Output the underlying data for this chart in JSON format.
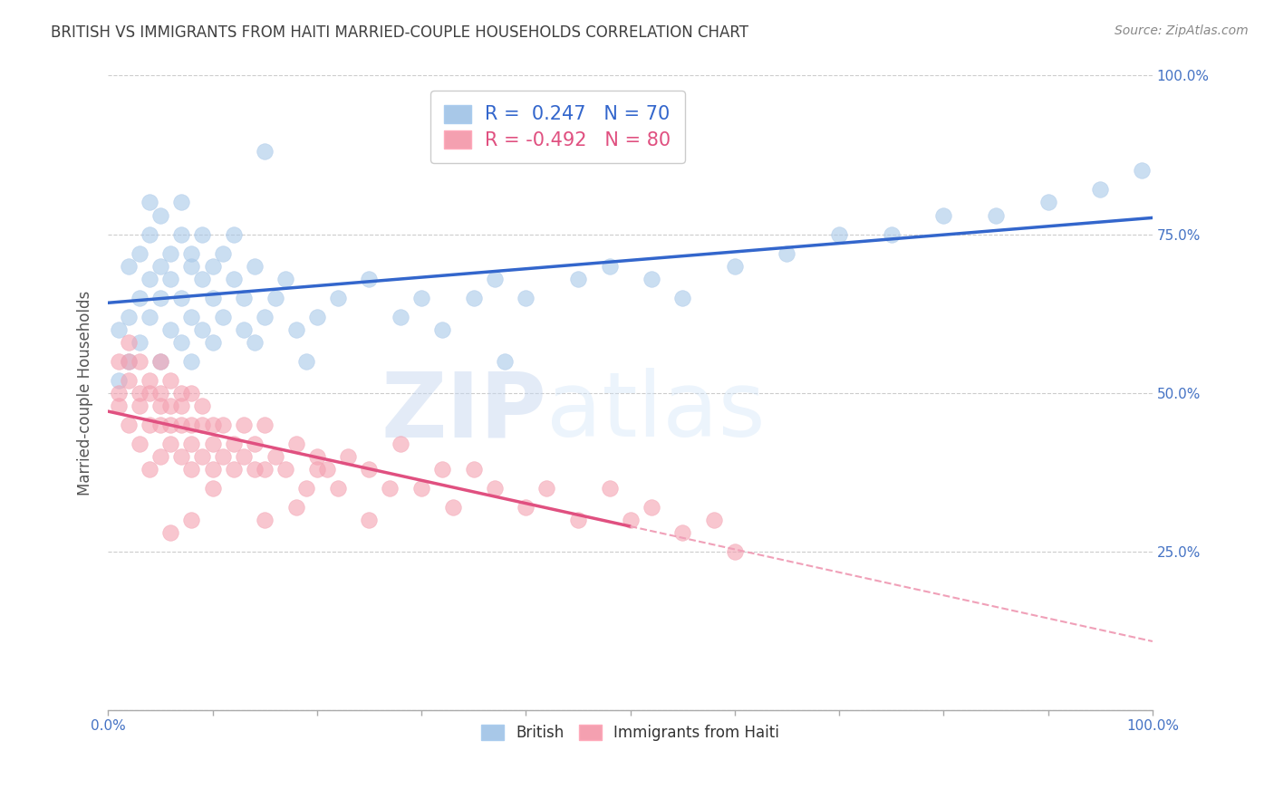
{
  "title": "BRITISH VS IMMIGRANTS FROM HAITI MARRIED-COUPLE HOUSEHOLDS CORRELATION CHART",
  "source": "Source: ZipAtlas.com",
  "ylabel": "Married-couple Households",
  "xlabel": "",
  "watermark_zip": "ZIP",
  "watermark_atlas": "atlas",
  "legend1_label": "British",
  "legend2_label": "Immigrants from Haiti",
  "R1": 0.247,
  "N1": 70,
  "R2": -0.492,
  "N2": 80,
  "xlim": [
    0,
    100
  ],
  "ylim": [
    0,
    100
  ],
  "xticks_minor": [
    0,
    10,
    20,
    30,
    40,
    50,
    60,
    70,
    80,
    90,
    100
  ],
  "xtick_label_positions": [
    0,
    100
  ],
  "xticklabels": [
    "0.0%",
    "100.0%"
  ],
  "ytick_label_positions": [
    25,
    50,
    75,
    100
  ],
  "yticklabels_right": [
    "25.0%",
    "50.0%",
    "75.0%",
    "100.0%"
  ],
  "blue_color": "#A8C8E8",
  "pink_color": "#F4A0B0",
  "blue_line_color": "#3366CC",
  "pink_line_color": "#E05080",
  "pink_dash_color": "#F0A0B8",
  "background_color": "#FFFFFF",
  "grid_color": "#CCCCCC",
  "title_color": "#404040",
  "axis_label_color": "#555555",
  "tick_color": "#4472C4",
  "source_color": "#888888",
  "british_scatter_x": [
    1,
    1,
    2,
    2,
    2,
    3,
    3,
    3,
    4,
    4,
    4,
    4,
    5,
    5,
    5,
    5,
    6,
    6,
    6,
    7,
    7,
    7,
    7,
    8,
    8,
    8,
    8,
    9,
    9,
    9,
    10,
    10,
    10,
    11,
    11,
    12,
    12,
    13,
    13,
    14,
    14,
    15,
    16,
    17,
    18,
    19,
    20,
    22,
    25,
    28,
    30,
    32,
    35,
    37,
    40,
    45,
    48,
    52,
    55,
    60,
    65,
    70,
    75,
    80,
    85,
    90,
    95,
    99,
    15,
    38
  ],
  "british_scatter_y": [
    52,
    60,
    55,
    62,
    70,
    65,
    72,
    58,
    68,
    75,
    62,
    80,
    70,
    65,
    78,
    55,
    72,
    60,
    68,
    75,
    65,
    58,
    80,
    70,
    62,
    72,
    55,
    68,
    75,
    60,
    65,
    70,
    58,
    72,
    62,
    68,
    75,
    60,
    65,
    70,
    58,
    62,
    65,
    68,
    60,
    55,
    62,
    65,
    68,
    62,
    65,
    60,
    65,
    68,
    65,
    68,
    70,
    68,
    65,
    70,
    72,
    75,
    75,
    78,
    78,
    80,
    82,
    85,
    88,
    55
  ],
  "haiti_scatter_x": [
    1,
    1,
    1,
    2,
    2,
    2,
    2,
    3,
    3,
    3,
    3,
    4,
    4,
    4,
    4,
    5,
    5,
    5,
    5,
    5,
    6,
    6,
    6,
    6,
    7,
    7,
    7,
    7,
    8,
    8,
    8,
    8,
    9,
    9,
    9,
    10,
    10,
    10,
    11,
    11,
    12,
    12,
    13,
    13,
    14,
    14,
    15,
    15,
    16,
    17,
    18,
    19,
    20,
    21,
    22,
    23,
    25,
    27,
    28,
    30,
    32,
    33,
    35,
    37,
    40,
    42,
    45,
    48,
    50,
    52,
    55,
    58,
    60,
    18,
    25,
    20,
    15,
    10,
    8,
    6
  ],
  "haiti_scatter_y": [
    50,
    55,
    48,
    52,
    58,
    45,
    55,
    50,
    48,
    55,
    42,
    52,
    45,
    50,
    38,
    55,
    50,
    45,
    48,
    40,
    48,
    52,
    42,
    45,
    50,
    45,
    40,
    48,
    45,
    50,
    38,
    42,
    45,
    48,
    40,
    45,
    42,
    38,
    45,
    40,
    42,
    38,
    40,
    45,
    38,
    42,
    38,
    45,
    40,
    38,
    42,
    35,
    40,
    38,
    35,
    40,
    38,
    35,
    42,
    35,
    38,
    32,
    38,
    35,
    32,
    35,
    30,
    35,
    30,
    32,
    28,
    30,
    25,
    32,
    30,
    38,
    30,
    35,
    30,
    28
  ]
}
